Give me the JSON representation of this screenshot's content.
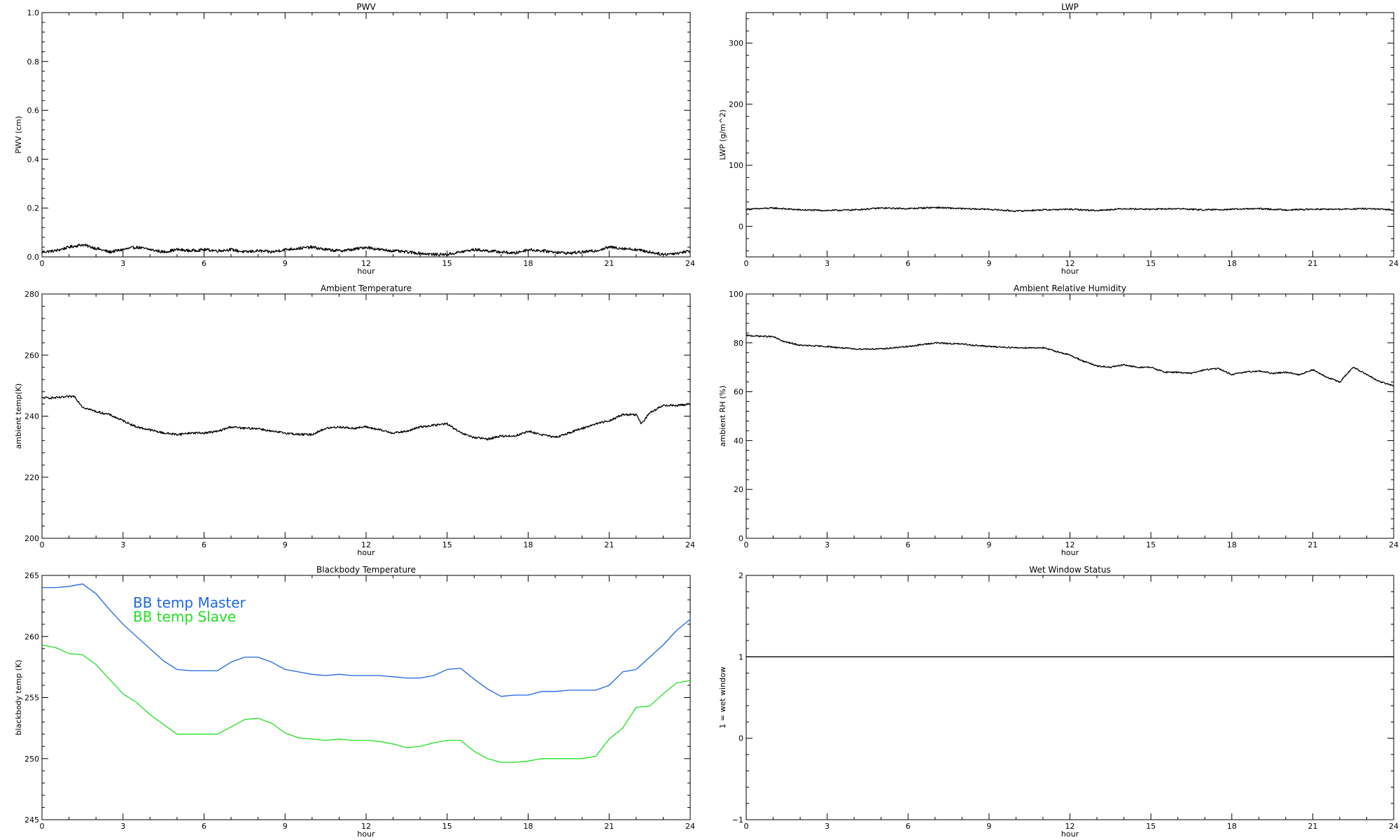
{
  "chart_data": [
    {
      "id": "pwv",
      "type": "line",
      "title": "PWV",
      "xlabel": "hour",
      "ylabel": "PWV (cm)",
      "xlim": [
        0,
        24
      ],
      "ylim": [
        0,
        1.0
      ],
      "xticks": [
        0,
        3,
        6,
        9,
        12,
        15,
        18,
        21,
        24
      ],
      "yticks": [
        "0.0",
        "0.2",
        "0.4",
        "0.6",
        "0.8",
        "1.0"
      ],
      "series": [
        {
          "color": "#000000",
          "noise": 0.006,
          "x": [
            0,
            0.5,
            1,
            1.5,
            2,
            2.5,
            3,
            3.5,
            4,
            4.5,
            5,
            5.5,
            6,
            6.5,
            7,
            7.5,
            8,
            8.5,
            9,
            9.5,
            10,
            10.5,
            11,
            11.5,
            12,
            12.5,
            13,
            13.5,
            14,
            14.5,
            15,
            15.5,
            16,
            16.5,
            17,
            17.5,
            18,
            18.5,
            19,
            19.5,
            20,
            20.5,
            21,
            21.5,
            22,
            22.5,
            23,
            23.5,
            24
          ],
          "y": [
            0.02,
            0.025,
            0.04,
            0.05,
            0.035,
            0.02,
            0.03,
            0.04,
            0.03,
            0.02,
            0.03,
            0.025,
            0.03,
            0.025,
            0.03,
            0.02,
            0.025,
            0.02,
            0.03,
            0.035,
            0.04,
            0.03,
            0.025,
            0.03,
            0.04,
            0.03,
            0.025,
            0.02,
            0.015,
            0.01,
            0.01,
            0.02,
            0.03,
            0.025,
            0.02,
            0.015,
            0.03,
            0.025,
            0.02,
            0.015,
            0.02,
            0.025,
            0.04,
            0.035,
            0.03,
            0.02,
            0.01,
            0.015,
            0.025
          ]
        }
      ]
    },
    {
      "id": "lwp",
      "type": "line",
      "title": "LWP",
      "xlabel": "hour",
      "ylabel": "LWP (g/m^2)",
      "xlim": [
        0,
        24
      ],
      "ylim": [
        -50,
        350
      ],
      "xticks": [
        0,
        3,
        6,
        9,
        12,
        15,
        18,
        21,
        24
      ],
      "yticks": [
        "0",
        "100",
        "200",
        "300"
      ],
      "series": [
        {
          "color": "#000000",
          "noise": 1.2,
          "x": [
            0,
            1,
            2,
            3,
            4,
            5,
            6,
            7,
            8,
            9,
            10,
            11,
            12,
            13,
            14,
            15,
            16,
            17,
            18,
            19,
            20,
            21,
            22,
            23,
            24
          ],
          "y": [
            28,
            30,
            27,
            26,
            27,
            30,
            29,
            31,
            29,
            28,
            25,
            27,
            28,
            26,
            29,
            28,
            29,
            27,
            28,
            29,
            27,
            28,
            28,
            29,
            27
          ]
        }
      ]
    },
    {
      "id": "ambient-temperature",
      "type": "line",
      "title": "Ambient Temperature",
      "xlabel": "hour",
      "ylabel": "ambient temp(K)",
      "xlim": [
        0,
        24
      ],
      "ylim": [
        200,
        280
      ],
      "xticks": [
        0,
        3,
        6,
        9,
        12,
        15,
        18,
        21,
        24
      ],
      "yticks": [
        "200",
        "220",
        "240",
        "260",
        "280"
      ],
      "series": [
        {
          "color": "#000000",
          "noise": 0.35,
          "x": [
            0,
            0.5,
            1.2,
            1.5,
            2,
            2.5,
            3,
            3.5,
            4,
            4.5,
            5,
            5.5,
            6,
            6.5,
            7,
            7.5,
            8,
            8.5,
            9,
            9.5,
            10,
            10.5,
            11,
            11.5,
            12,
            12.5,
            13,
            13.5,
            14,
            14.5,
            15,
            15.5,
            16,
            16.5,
            17,
            17.5,
            18,
            18.5,
            19,
            19.5,
            20,
            20.5,
            21,
            21.5,
            22,
            22.2,
            22.5,
            23,
            23.5,
            24
          ],
          "y": [
            246,
            246,
            246.5,
            243,
            241.5,
            240.5,
            238.5,
            236.5,
            235.5,
            234.5,
            234,
            234.5,
            234.5,
            235,
            236.5,
            236,
            236,
            235,
            234.5,
            234,
            234,
            236,
            236.5,
            236,
            236.5,
            235.5,
            234.5,
            235,
            236.5,
            237,
            237.5,
            234.5,
            233,
            232.5,
            233.5,
            233.5,
            235,
            234,
            233,
            234.5,
            236,
            237.5,
            238.5,
            240.5,
            240.5,
            237.5,
            241,
            243.5,
            243.5,
            244
          ]
        }
      ]
    },
    {
      "id": "ambient-relative-humidity",
      "type": "line",
      "title": "Ambient Relative Humidity",
      "xlabel": "hour",
      "ylabel": "ambient RH (%)",
      "xlim": [
        0,
        24
      ],
      "ylim": [
        0,
        100
      ],
      "xticks": [
        0,
        3,
        6,
        9,
        12,
        15,
        18,
        21,
        24
      ],
      "yticks": [
        "0",
        "20",
        "40",
        "60",
        "80",
        "100"
      ],
      "series": [
        {
          "color": "#000000",
          "noise": 0.3,
          "x": [
            0,
            1,
            1.4,
            2,
            3,
            4,
            5,
            6,
            7,
            8,
            9,
            10,
            11,
            11.5,
            12,
            12.5,
            13,
            13.5,
            14,
            14.5,
            15,
            15.5,
            16,
            16.5,
            17,
            17.5,
            18,
            18.5,
            19,
            19.5,
            20,
            20.5,
            21,
            21.5,
            22,
            22.5,
            23,
            23.5,
            24
          ],
          "y": [
            83,
            82.5,
            80.5,
            79,
            78.5,
            77.5,
            77.5,
            78.5,
            80,
            79.5,
            78.5,
            78,
            78,
            76.5,
            75,
            72.5,
            70.5,
            70,
            71,
            70,
            70,
            68,
            68,
            67.5,
            69,
            69.5,
            67,
            68,
            68.5,
            67.5,
            68,
            67,
            69,
            66,
            64,
            70,
            67,
            64,
            62.5
          ]
        }
      ]
    },
    {
      "id": "blackbody-temperature",
      "type": "line",
      "title": "Blackbody Temperature",
      "xlabel": "hour",
      "ylabel": "blackbody temp (K)",
      "xlim": [
        0,
        24
      ],
      "ylim": [
        245,
        265
      ],
      "xticks": [
        0,
        3,
        6,
        9,
        12,
        15,
        18,
        21,
        24
      ],
      "yticks": [
        "245",
        "250",
        "255",
        "260",
        "265"
      ],
      "legend": "top-left",
      "series": [
        {
          "name": "BB temp Master",
          "color": "#1f66e6",
          "noise": 0,
          "x": [
            0,
            0.5,
            1,
            1.5,
            2,
            2.5,
            3,
            3.5,
            4,
            4.5,
            5,
            5.5,
            6,
            6.5,
            7,
            7.5,
            8,
            8.5,
            9,
            9.5,
            10,
            10.5,
            11,
            11.5,
            12,
            12.5,
            13,
            13.5,
            14,
            14.5,
            15,
            15.5,
            16,
            16.5,
            17,
            17.5,
            18,
            18.5,
            19,
            19.5,
            20,
            20.5,
            21,
            21.5,
            22,
            22.5,
            23,
            23.5,
            24
          ],
          "y": [
            264,
            264,
            264.1,
            264.3,
            263.5,
            262.2,
            261,
            260,
            259,
            258,
            257.3,
            257.2,
            257.2,
            257.2,
            257.9,
            258.3,
            258.3,
            257.9,
            257.3,
            257.1,
            256.9,
            256.8,
            256.9,
            256.8,
            256.8,
            256.8,
            256.7,
            256.6,
            256.6,
            256.8,
            257.3,
            257.4,
            256.5,
            255.7,
            255.1,
            255.2,
            255.2,
            255.5,
            255.5,
            255.6,
            255.6,
            255.6,
            256,
            257.1,
            257.3,
            258.3,
            259.3,
            260.5,
            261.4
          ]
        },
        {
          "name": "BB temp Slave",
          "color": "#22e022",
          "noise": 0,
          "x": [
            0,
            0.5,
            1,
            1.5,
            2,
            2.5,
            3,
            3.5,
            4,
            4.5,
            5,
            5.5,
            6,
            6.5,
            7,
            7.5,
            8,
            8.5,
            9,
            9.5,
            10,
            10.5,
            11,
            11.5,
            12,
            12.5,
            13,
            13.5,
            14,
            14.5,
            15,
            15.5,
            16,
            16.5,
            17,
            17.5,
            18,
            18.5,
            19,
            19.5,
            20,
            20.5,
            21,
            21.5,
            22,
            22.5,
            23,
            23.5,
            24
          ],
          "y": [
            259.3,
            259.1,
            258.6,
            258.5,
            257.7,
            256.5,
            255.3,
            254.6,
            253.6,
            252.8,
            252,
            252,
            252,
            252,
            252.6,
            253.2,
            253.3,
            252.9,
            252.1,
            251.7,
            251.6,
            251.5,
            251.6,
            251.5,
            251.5,
            251.4,
            251.2,
            250.9,
            251,
            251.3,
            251.5,
            251.5,
            250.6,
            250,
            249.7,
            249.7,
            249.8,
            250,
            250,
            250,
            250,
            250.2,
            251.6,
            252.5,
            254.2,
            254.3,
            255.3,
            256.2,
            256.4
          ]
        }
      ]
    },
    {
      "id": "wet-window-status",
      "type": "line",
      "title": "Wet Window Status",
      "xlabel": "hour",
      "ylabel": "1 = wet window",
      "xlim": [
        0,
        24
      ],
      "ylim": [
        -1,
        2
      ],
      "xticks": [
        0,
        3,
        6,
        9,
        12,
        15,
        18,
        21,
        24
      ],
      "yticks": [
        "−1",
        "0",
        "1",
        "2"
      ],
      "series": [
        {
          "color": "#000000",
          "noise": 0,
          "x": [
            0,
            24
          ],
          "y": [
            1,
            1
          ]
        }
      ]
    }
  ]
}
